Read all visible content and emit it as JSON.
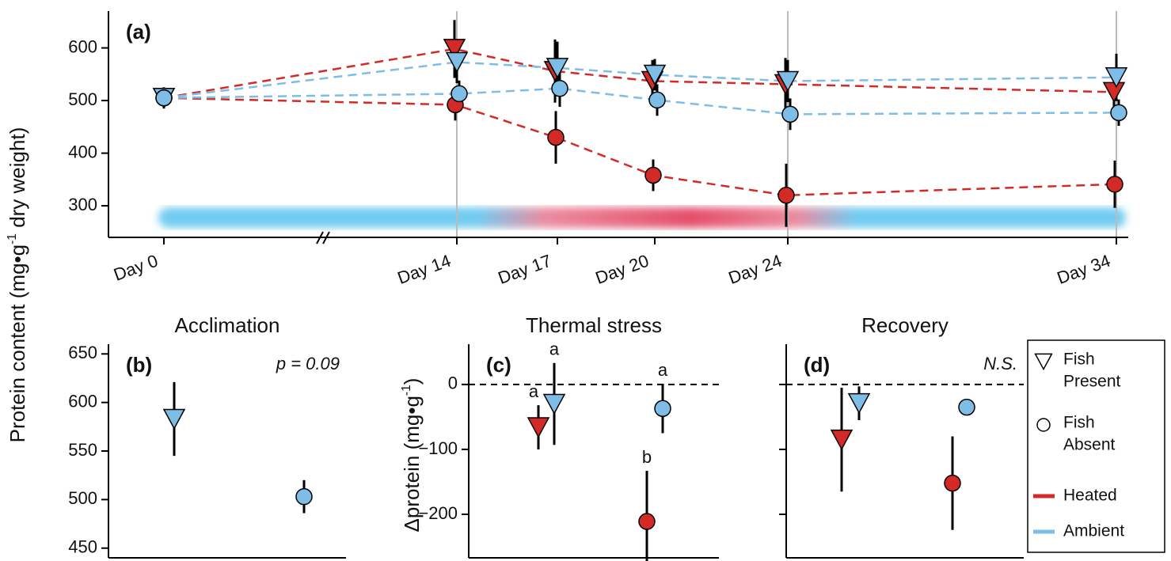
{
  "ylabel": {
    "text": "Protein content (mg•g",
    "sup": "-1",
    "tail": " dry weight)"
  },
  "legend": [
    {
      "lines": [
        "Fish",
        "Present"
      ],
      "marker": "triangle"
    },
    {
      "lines": [
        "Fish",
        "Absent"
      ],
      "marker": "circle"
    },
    {
      "lines": [
        "Heated"
      ],
      "color": "#d42a27"
    },
    {
      "lines": [
        "Ambient"
      ],
      "color": "#7dbde6"
    }
  ],
  "chart_data": [
    {
      "type": "line",
      "panel": "(a)",
      "categories": [
        "Day 0",
        "Day 14",
        "Day 17",
        "Day 20",
        "Day 24",
        "Day 34"
      ],
      "ylim": [
        240,
        670
      ],
      "yticks": [
        300,
        400,
        500,
        600
      ],
      "series": [
        {
          "color": "#d42a27",
          "marker": "triangle",
          "values": [
            505,
            598,
            556,
            537,
            531,
            516
          ],
          "errors": [
            20,
            55,
            60,
            40,
            50,
            45
          ]
        },
        {
          "color": "#7dbde6",
          "marker": "triangle",
          "values": [
            505,
            573,
            562,
            549,
            537,
            544
          ],
          "errors": [
            20,
            40,
            50,
            30,
            40,
            45
          ]
        },
        {
          "color": "#d42a27",
          "marker": "circle",
          "values": [
            505,
            492,
            430,
            358,
            320,
            341
          ],
          "errors": [
            20,
            30,
            50,
            30,
            60,
            45
          ]
        },
        {
          "color": "#7dbde6",
          "marker": "circle",
          "values": [
            505,
            513,
            523,
            501,
            474,
            477
          ],
          "errors": [
            20,
            25,
            35,
            30,
            30,
            25
          ]
        }
      ]
    },
    {
      "type": "points",
      "panel": "(b)",
      "title": "Acclimation",
      "annotation": "p = 0.09",
      "ylim": [
        440,
        660
      ],
      "yticks": [
        450,
        500,
        550,
        600,
        650
      ],
      "points": [
        {
          "color": "#7dbde6",
          "marker": "triangle",
          "value": 583,
          "error": 38
        },
        {
          "color": "#7dbde6",
          "marker": "circle",
          "value": 503,
          "error": 17
        }
      ]
    },
    {
      "type": "points",
      "panel": "(c)",
      "title": "Thermal stress",
      "ylabel": {
        "text": "Δprotein (mg•g",
        "sup": "-1",
        "tail": ")"
      },
      "ylim": [
        -267,
        62
      ],
      "yticks": [
        {
          "value": -200,
          "label": "−200"
        },
        {
          "value": -100,
          "label": "−100"
        },
        0
      ],
      "zero_line": true,
      "points": [
        {
          "color": "#d42a27",
          "marker": "triangle",
          "value": -66,
          "error": 34,
          "label": "a"
        },
        {
          "color": "#7dbde6",
          "marker": "triangle",
          "value": -30,
          "error": 63,
          "label": "a"
        },
        {
          "color": "#d42a27",
          "marker": "circle",
          "value": -211,
          "error": 78,
          "label": "b"
        },
        {
          "color": "#7dbde6",
          "marker": "circle",
          "value": -37,
          "error": 38,
          "label": "a"
        }
      ]
    },
    {
      "type": "points",
      "panel": "(d)",
      "title": "Recovery",
      "annotation": "N.S.",
      "ylim": [
        -267,
        62
      ],
      "yticks": [
        -200,
        -100,
        0
      ],
      "tick_labels": false,
      "zero_line": true,
      "points": [
        {
          "color": "#d42a27",
          "marker": "triangle",
          "value": -85,
          "error": 80
        },
        {
          "color": "#7dbde6",
          "marker": "triangle",
          "value": -29,
          "error": 26
        },
        {
          "color": "#d42a27",
          "marker": "circle",
          "value": -152,
          "error": 72
        },
        {
          "color": "#7dbde6",
          "marker": "circle",
          "value": -35,
          "error": 0
        }
      ]
    }
  ]
}
